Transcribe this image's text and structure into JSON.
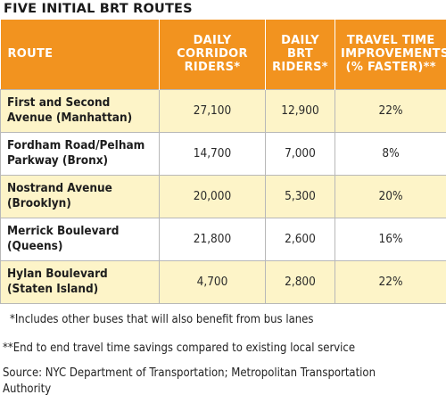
{
  "title": "FIVE INITIAL BRT ROUTES",
  "table": {
    "headers": [
      "ROUTE",
      "DAILY CORRIDOR RIDERS*",
      "DAILY BRT RIDERS*",
      "TRAVEL TIME IMPROVEMENTS (% FASTER)**"
    ],
    "rows": [
      {
        "route": "First and Second Avenue (Manhattan)",
        "corridor": "27,100",
        "brt": "12,900",
        "improvement": "22%"
      },
      {
        "route": "Fordham Road/Pelham Parkway (Bronx)",
        "corridor": "14,700",
        "brt": "7,000",
        "improvement": "8%"
      },
      {
        "route": "Nostrand Avenue (Brooklyn)",
        "corridor": "20,000",
        "brt": "5,300",
        "improvement": "20%"
      },
      {
        "route": "Merrick Boulevard (Queens)",
        "corridor": "21,800",
        "brt": "2,600",
        "improvement": "16%"
      },
      {
        "route": "Hylan Boulevard (Staten Island)",
        "corridor": "4,700",
        "brt": "2,800",
        "improvement": "22%"
      }
    ]
  },
  "footnotes": {
    "note1": "*Includes other buses that will also benefit from bus lanes",
    "note2": "**End to end travel time savings compared to existing local service",
    "source": "Source: NYC Department of Transportation; Metropolitan Transportation Authority"
  },
  "colors": {
    "header_bg": "#f2931f",
    "row_highlight": "#fdf4c8"
  }
}
